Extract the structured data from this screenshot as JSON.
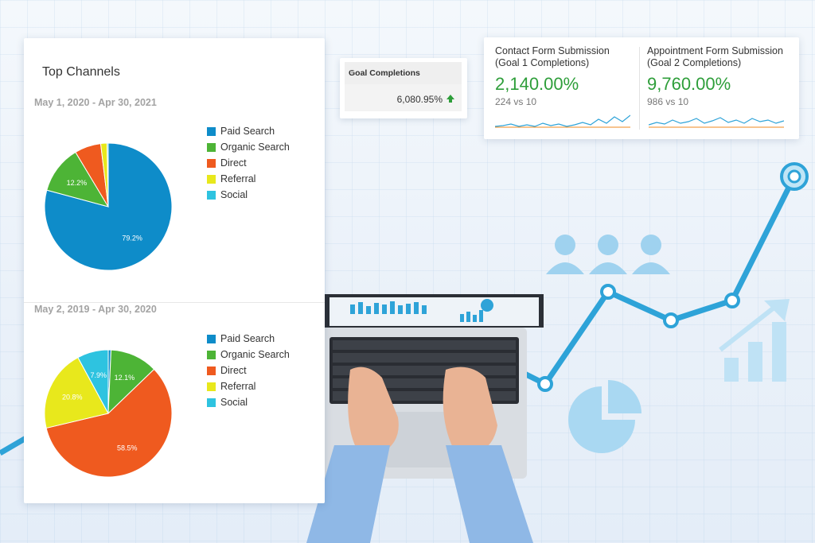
{
  "top_channels": {
    "title": "Top Channels",
    "periods": [
      {
        "date_range": "May 1, 2020 - Apr 30, 2021",
        "legend": [
          "Paid Search",
          "Organic Search",
          "Direct",
          "Referral",
          "Social"
        ],
        "slice_labels": [
          "79.2%",
          "12.2%",
          "",
          "",
          ""
        ]
      },
      {
        "date_range": "May 2, 2019 - Apr 30, 2020",
        "legend": [
          "Paid Search",
          "Organic Search",
          "Direct",
          "Referral",
          "Social"
        ],
        "slice_labels": [
          "",
          "12.1%",
          "58.5%",
          "20.8%",
          "7.9%"
        ]
      }
    ]
  },
  "goal_completions": {
    "header": "Goal Completions",
    "value": "6,080.95%"
  },
  "goals": [
    {
      "name": "Contact Form Submission",
      "sub": "(Goal 1 Completions)",
      "change": "2,140.00%",
      "comparison": "224 vs 10"
    },
    {
      "name": "Appointment Form Submission",
      "sub": "(Goal 2 Completions)",
      "change": "9,760.00%",
      "comparison": "986 vs 10"
    }
  ],
  "colors": {
    "paid_search": "#0e8cc9",
    "organic_search": "#4db436",
    "direct": "#ef5a1f",
    "referral": "#e8e81c",
    "social": "#2ec3e0",
    "positive": "#2e9e3a",
    "accent": "#2ea3d8"
  },
  "icons": [
    "sort-icon",
    "up-arrow-icon",
    "users-icon",
    "pie-chart-icon",
    "growth-chart-icon",
    "laptop-illustration"
  ],
  "chart_data": [
    {
      "type": "pie",
      "title": "May 1, 2020 - Apr 30, 2021",
      "categories": [
        "Paid Search",
        "Organic Search",
        "Direct",
        "Referral",
        "Social"
      ],
      "values": [
        79.2,
        12.2,
        6.7,
        1.6,
        0.3
      ]
    },
    {
      "type": "pie",
      "title": "May 2, 2019 - Apr 30, 2020",
      "categories": [
        "Paid Search",
        "Organic Search",
        "Direct",
        "Referral",
        "Social"
      ],
      "values": [
        0.7,
        12.1,
        58.5,
        20.8,
        7.9
      ]
    }
  ]
}
